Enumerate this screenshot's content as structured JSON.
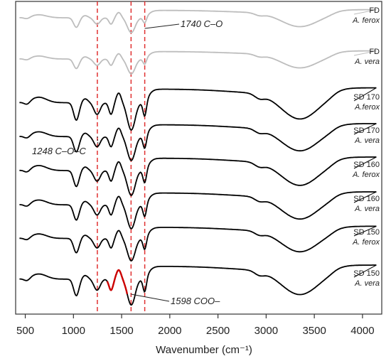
{
  "chart_data": {
    "type": "line",
    "title": "",
    "xlabel": "Wavenumber (cm⁻¹)",
    "ylabel": "",
    "xlim": [
      400,
      4200
    ],
    "x_ticks": [
      500,
      1000,
      1500,
      2000,
      2500,
      3000,
      3500,
      4000
    ],
    "grid": false,
    "y_ticks_shown": false,
    "series": [
      {
        "name_line1": "FD",
        "name_line2": "A. ferox",
        "color": "#bdbdbd"
      },
      {
        "name_line1": "FD",
        "name_line2": "A. vera",
        "color": "#bdbdbd"
      },
      {
        "name_line1": "SD 170",
        "name_line2": "A.ferox",
        "color": "#000000"
      },
      {
        "name_line1": "SD 170",
        "name_line2": "A. vera",
        "color": "#000000"
      },
      {
        "name_line1": "SD 160",
        "name_line2": "A. ferox",
        "color": "#000000"
      },
      {
        "name_line1": "SD 160",
        "name_line2": "A. vera",
        "color": "#000000"
      },
      {
        "name_line1": "SD 150",
        "name_line2": "A. ferox",
        "color": "#000000"
      },
      {
        "name_line1": "SD 150",
        "name_line2": "A. vera",
        "color": "#000000",
        "highlight_range": [
          1350,
          1560
        ],
        "highlight_color": "#cc0000"
      }
    ],
    "reference_lines": [
      {
        "x": 1248,
        "color": "#e03030",
        "style": "dashed"
      },
      {
        "x": 1598,
        "color": "#e03030",
        "style": "dashed"
      },
      {
        "x": 1740,
        "color": "#e03030",
        "style": "dashed"
      }
    ],
    "annotations": [
      {
        "text": "1740 C–O",
        "x": 1740
      },
      {
        "text": "1248 C–O–C",
        "x": 1248
      },
      {
        "text": "1598 COO–",
        "x": 1598
      }
    ]
  }
}
